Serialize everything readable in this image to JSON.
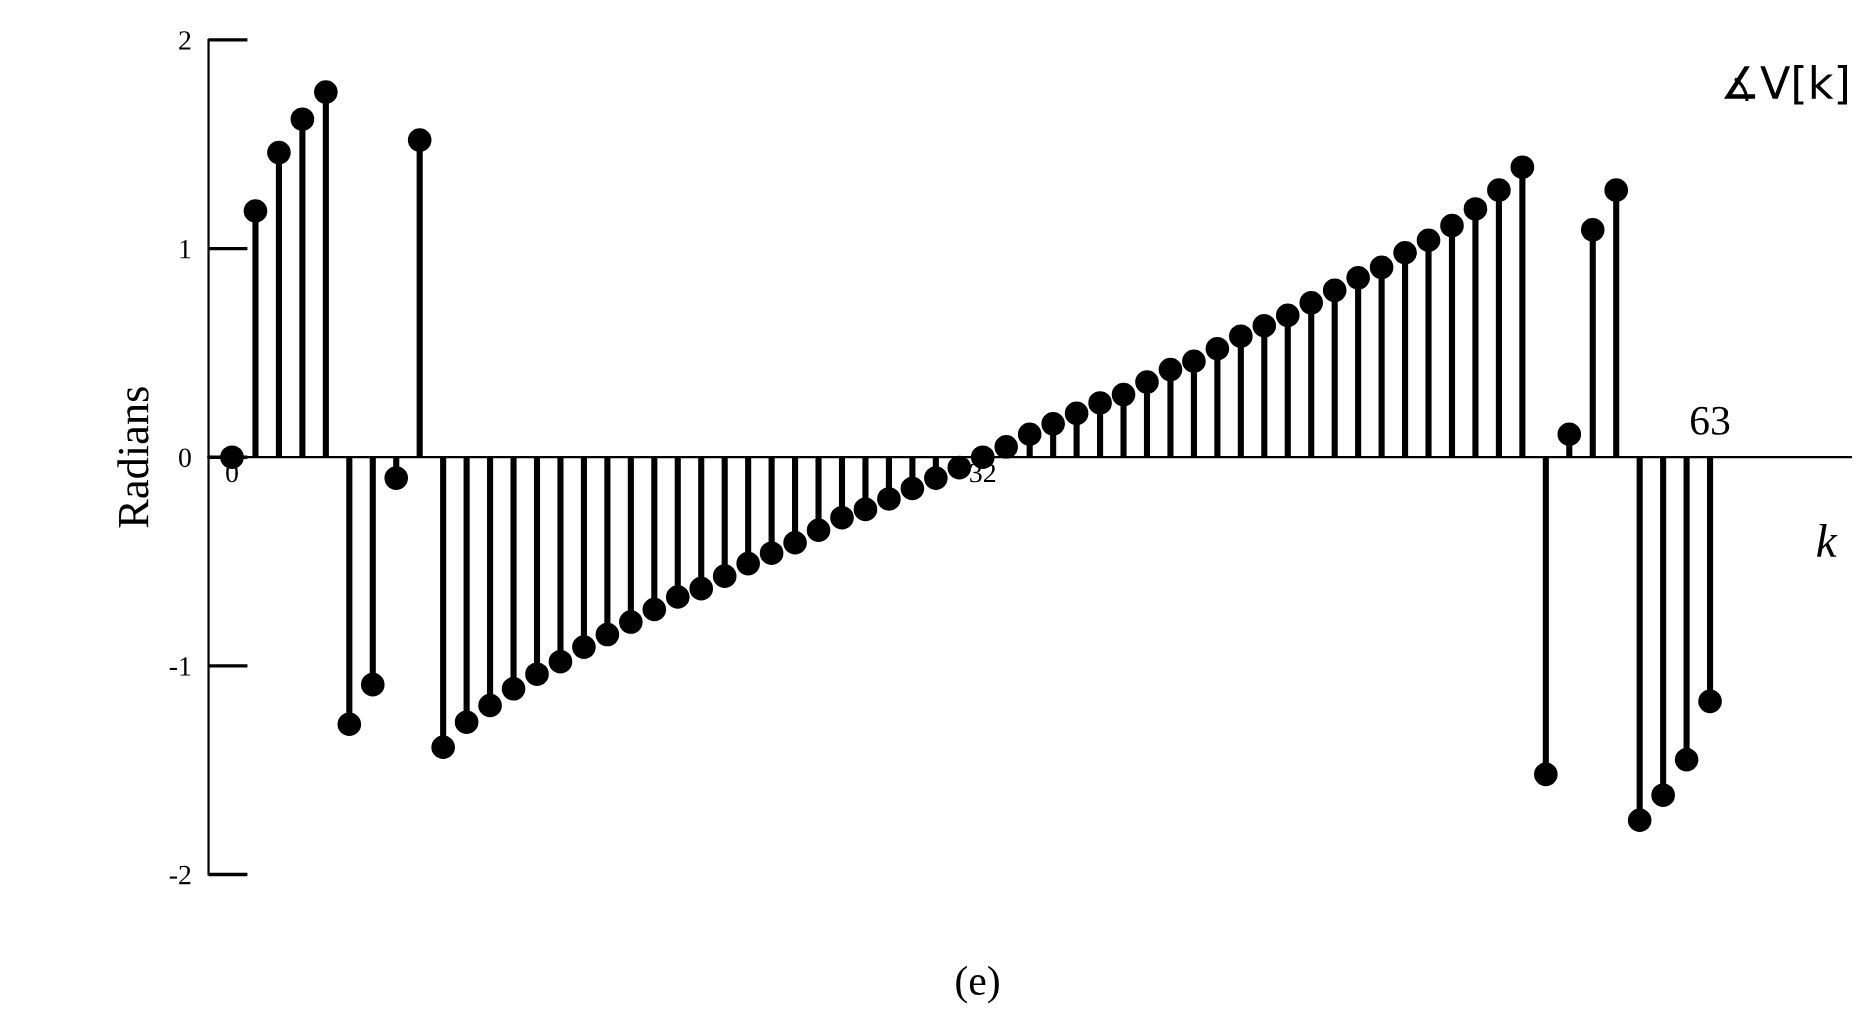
{
  "chart_data": {
    "type": "lollipop",
    "xlabel": "k",
    "ylabel": "Radians",
    "annotations": [
      "∡V[k]",
      "(e)",
      "63"
    ],
    "x": [
      0,
      1,
      2,
      3,
      4,
      5,
      6,
      7,
      8,
      9,
      10,
      11,
      12,
      13,
      14,
      15,
      16,
      17,
      18,
      19,
      20,
      21,
      22,
      23,
      24,
      25,
      26,
      27,
      28,
      29,
      30,
      31,
      32,
      33,
      34,
      35,
      36,
      37,
      38,
      39,
      40,
      41,
      42,
      43,
      44,
      45,
      46,
      47,
      48,
      49,
      50,
      51,
      52,
      53,
      54,
      55,
      56,
      57,
      58,
      59,
      60,
      61,
      62,
      63
    ],
    "series": [
      {
        "color": "#000000",
        "values": [
          0,
          1.18,
          1.46,
          1.62,
          1.75,
          -1.28,
          -1.09,
          -0.1,
          1.52,
          -1.39,
          -1.27,
          -1.19,
          -1.11,
          -1.04,
          -0.98,
          -0.91,
          -0.85,
          -0.79,
          -0.73,
          -0.67,
          -0.63,
          -0.57,
          -0.51,
          -0.46,
          -0.41,
          -0.35,
          -0.29,
          -0.25,
          -0.2,
          -0.15,
          -0.1,
          -0.05,
          0,
          0.05,
          0.11,
          0.16,
          0.21,
          0.26,
          0.3,
          0.36,
          0.42,
          0.46,
          0.52,
          0.58,
          0.63,
          0.68,
          0.74,
          0.8,
          0.86,
          0.91,
          0.98,
          1.04,
          1.11,
          1.19,
          1.28,
          1.39,
          -1.52,
          0.11,
          1.09,
          1.28,
          -1.74,
          -1.62,
          -1.45,
          -1.17
        ]
      }
    ],
    "xlim": [
      -1,
      69
    ],
    "xticks": [
      0,
      32
    ],
    "ylim": [
      -2,
      2
    ],
    "yticks": [
      -2,
      -1,
      0,
      1,
      2
    ],
    "marker": "circle",
    "grid": false,
    "legend": false
  }
}
